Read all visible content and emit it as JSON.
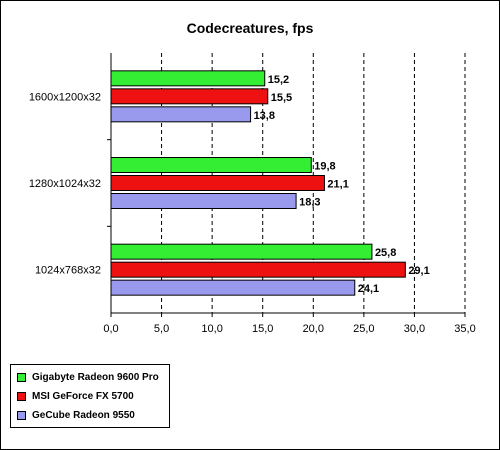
{
  "chart_data": {
    "type": "bar",
    "orientation": "horizontal",
    "title": "Codecreatures, fps",
    "categories": [
      "1600x1200x32",
      "1280x1024x32",
      "1024x768x32"
    ],
    "series": [
      {
        "name": "Gigabyte Radeon 9600 Pro",
        "color": "#33ee33",
        "values": [
          15.2,
          19.8,
          25.8
        ],
        "labels": [
          "15,2",
          "19,8",
          "25,8"
        ]
      },
      {
        "name": "MSI GeForce FX 5700",
        "color": "#ee1111",
        "values": [
          15.5,
          21.1,
          29.1
        ],
        "labels": [
          "15,5",
          "21,1",
          "29,1"
        ]
      },
      {
        "name": "GeCube Radeon 9550",
        "color": "#9999ee",
        "values": [
          13.8,
          18.3,
          24.1
        ],
        "labels": [
          "13,8",
          "18,3",
          "24,1"
        ]
      }
    ],
    "xlim": [
      0,
      35
    ],
    "xticks": [
      0,
      5,
      10,
      15,
      20,
      25,
      30,
      35
    ],
    "xtick_labels": [
      "0,0",
      "5,0",
      "10,0",
      "15,0",
      "20,0",
      "25,0",
      "30,0",
      "35,0"
    ],
    "grid": "vertical dashed",
    "legend_position": "bottom-left"
  }
}
